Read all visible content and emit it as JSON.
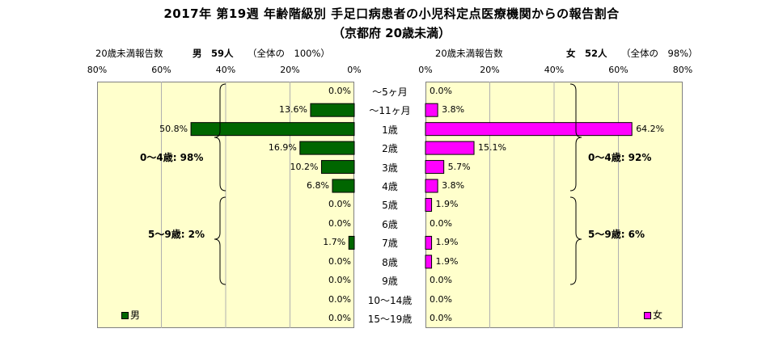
{
  "title": {
    "line1": "2017年 第19週 年齢階級別 手足口病患者の小児科定点医療機関からの報告割合",
    "line2": "（京都府 20歳未満）"
  },
  "header": {
    "male_axis_label": "20歳未満報告数",
    "male_summary": "男　59人",
    "male_share": "（全体の　100%）",
    "female_axis_label": "20歳未満報告数",
    "female_summary": "女　52人",
    "female_share": "（全体の　98%）"
  },
  "groups": {
    "male_0_4": "0～4歳: 98%",
    "male_5_9": "5～9歳: 2%",
    "female_0_4": "0～4歳: 92%",
    "female_5_9": "5～9歳: 6%"
  },
  "legend": {
    "male": "男",
    "female": "女"
  },
  "colors": {
    "male": "#006600",
    "female": "#ff00ff",
    "plot_bg": "#ffffcc"
  },
  "chart_data": {
    "type": "bar",
    "orientation": "horizontal",
    "layout": "population-pyramid",
    "categories": [
      "～5ヶ月",
      "～11ヶ月",
      "1歳",
      "2歳",
      "3歳",
      "4歳",
      "5歳",
      "6歳",
      "7歳",
      "8歳",
      "9歳",
      "10～14歳",
      "15～19歳"
    ],
    "series": [
      {
        "name": "男",
        "values": [
          0.0,
          13.6,
          50.8,
          16.9,
          10.2,
          6.8,
          0.0,
          0.0,
          1.7,
          0.0,
          0.0,
          0.0,
          0.0
        ]
      },
      {
        "name": "女",
        "values": [
          0.0,
          3.8,
          64.2,
          15.1,
          5.7,
          3.8,
          1.9,
          0.0,
          1.9,
          1.9,
          0.0,
          0.0,
          0.0
        ]
      }
    ],
    "xlim": [
      0,
      80
    ],
    "ticks": [
      "80%",
      "60%",
      "40%",
      "20%",
      "0%"
    ],
    "female_ticks": [
      "0%",
      "20%",
      "40%",
      "60%",
      "80%"
    ],
    "unit": "%",
    "grid": true,
    "legend_position": "bottom"
  }
}
